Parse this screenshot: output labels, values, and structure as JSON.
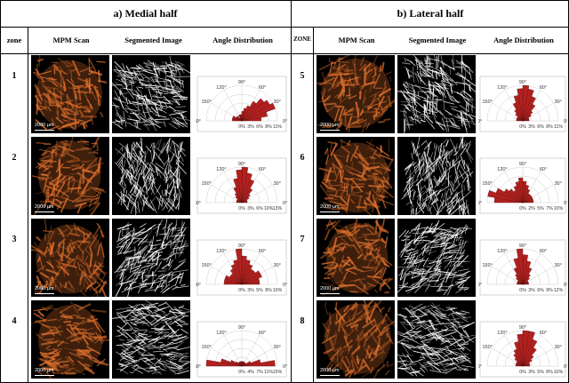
{
  "headers": {
    "left": "a) Medial half",
    "right": "b) Lateral half"
  },
  "columns_left": {
    "zone": "zone",
    "scan": "MPM Scan",
    "segmented": "Segmented Image",
    "angle": "Angle Distribution"
  },
  "columns_right": {
    "zone": "ZONE",
    "scan": "MPM Scan",
    "segmented": "Segmented Image",
    "angle": "Angle Distribution"
  },
  "scale_label": "2000 µm",
  "angle_labels": [
    "90°",
    "60°",
    "30°",
    "0°",
    "120°",
    "150°",
    "180°"
  ],
  "colors": {
    "scan": "#e0702c",
    "bars": "#b2211f"
  },
  "chart_data": [
    {
      "type": "polar-histogram",
      "zone": "1",
      "r_ticks": [
        "0%",
        "3%",
        "6%",
        "8%",
        "11%"
      ],
      "bins_deg": [
        0,
        10,
        20,
        30,
        40,
        50,
        60,
        70,
        80,
        90,
        100,
        110,
        120,
        130,
        140,
        150,
        160,
        170
      ],
      "values": [
        6,
        8,
        11,
        10,
        9,
        7,
        5,
        4,
        3,
        2,
        2,
        2,
        1,
        2,
        2,
        3,
        3,
        3
      ]
    },
    {
      "type": "polar-histogram",
      "zone": "2",
      "r_ticks": [
        "0%",
        "3%",
        "6%",
        "10%",
        "13%"
      ],
      "bins_deg": [
        0,
        10,
        20,
        30,
        40,
        50,
        60,
        70,
        80,
        90,
        100,
        110,
        120,
        130,
        140,
        150,
        160,
        170
      ],
      "values": [
        2,
        2,
        2,
        3,
        4,
        6,
        9,
        11,
        13,
        12,
        9,
        6,
        4,
        3,
        2,
        2,
        2,
        2
      ]
    },
    {
      "type": "polar-histogram",
      "zone": "3",
      "r_ticks": [
        "0%",
        "3%",
        "5%",
        "8%",
        "10%"
      ],
      "bins_deg": [
        0,
        10,
        20,
        30,
        40,
        50,
        60,
        70,
        80,
        90,
        100,
        110,
        120,
        130,
        140,
        150,
        160,
        170
      ],
      "values": [
        5,
        5,
        6,
        6,
        5,
        5,
        6,
        7,
        8,
        10,
        7,
        6,
        5,
        4,
        4,
        5,
        5,
        5
      ]
    },
    {
      "type": "polar-histogram",
      "zone": "4",
      "r_ticks": [
        "0%",
        "4%",
        "7%",
        "11%",
        "15%"
      ],
      "bins_deg": [
        0,
        10,
        20,
        30,
        40,
        50,
        60,
        70,
        80,
        90,
        100,
        110,
        120,
        130,
        140,
        150,
        160,
        170
      ],
      "values": [
        14,
        8,
        4,
        2,
        2,
        2,
        2,
        2,
        2,
        2,
        2,
        2,
        2,
        2,
        3,
        5,
        9,
        15
      ]
    },
    {
      "type": "polar-histogram",
      "zone": "5",
      "r_ticks": [
        "0%",
        "3%",
        "6%",
        "8%",
        "11%"
      ],
      "bins_deg": [
        0,
        10,
        20,
        30,
        40,
        50,
        60,
        70,
        80,
        90,
        100,
        110,
        120,
        130,
        140,
        150,
        160,
        170
      ],
      "values": [
        2,
        2,
        2,
        3,
        4,
        6,
        8,
        10,
        11,
        10,
        8,
        6,
        4,
        3,
        2,
        2,
        2,
        2
      ]
    },
    {
      "type": "polar-histogram",
      "zone": "6",
      "r_ticks": [
        "0%",
        "2%",
        "5%",
        "7%",
        "10%"
      ],
      "bins_deg": [
        0,
        10,
        20,
        30,
        40,
        50,
        60,
        70,
        80,
        90,
        100,
        110,
        120,
        130,
        140,
        150,
        160,
        170
      ],
      "values": [
        3,
        3,
        3,
        3,
        3,
        3,
        4,
        5,
        6,
        7,
        6,
        5,
        4,
        5,
        6,
        8,
        10,
        8
      ]
    },
    {
      "type": "polar-histogram",
      "zone": "7",
      "r_ticks": [
        "0%",
        "3%",
        "6%",
        "9%",
        "12%"
      ],
      "bins_deg": [
        0,
        10,
        20,
        30,
        40,
        50,
        60,
        70,
        80,
        90,
        100,
        110,
        120,
        130,
        140,
        150,
        160,
        170
      ],
      "values": [
        2,
        2,
        2,
        2,
        3,
        4,
        6,
        8,
        10,
        12,
        9,
        6,
        4,
        3,
        2,
        2,
        2,
        2
      ]
    },
    {
      "type": "polar-histogram",
      "zone": "8",
      "r_ticks": [
        "0%",
        "3%",
        "5%",
        "8%",
        "10%"
      ],
      "bins_deg": [
        0,
        10,
        20,
        30,
        40,
        50,
        60,
        70,
        80,
        90,
        100,
        110,
        120,
        130,
        140,
        150,
        160,
        170
      ],
      "values": [
        2,
        2,
        2,
        3,
        4,
        6,
        8,
        10,
        10,
        9,
        7,
        5,
        4,
        3,
        2,
        2,
        2,
        2
      ]
    }
  ]
}
